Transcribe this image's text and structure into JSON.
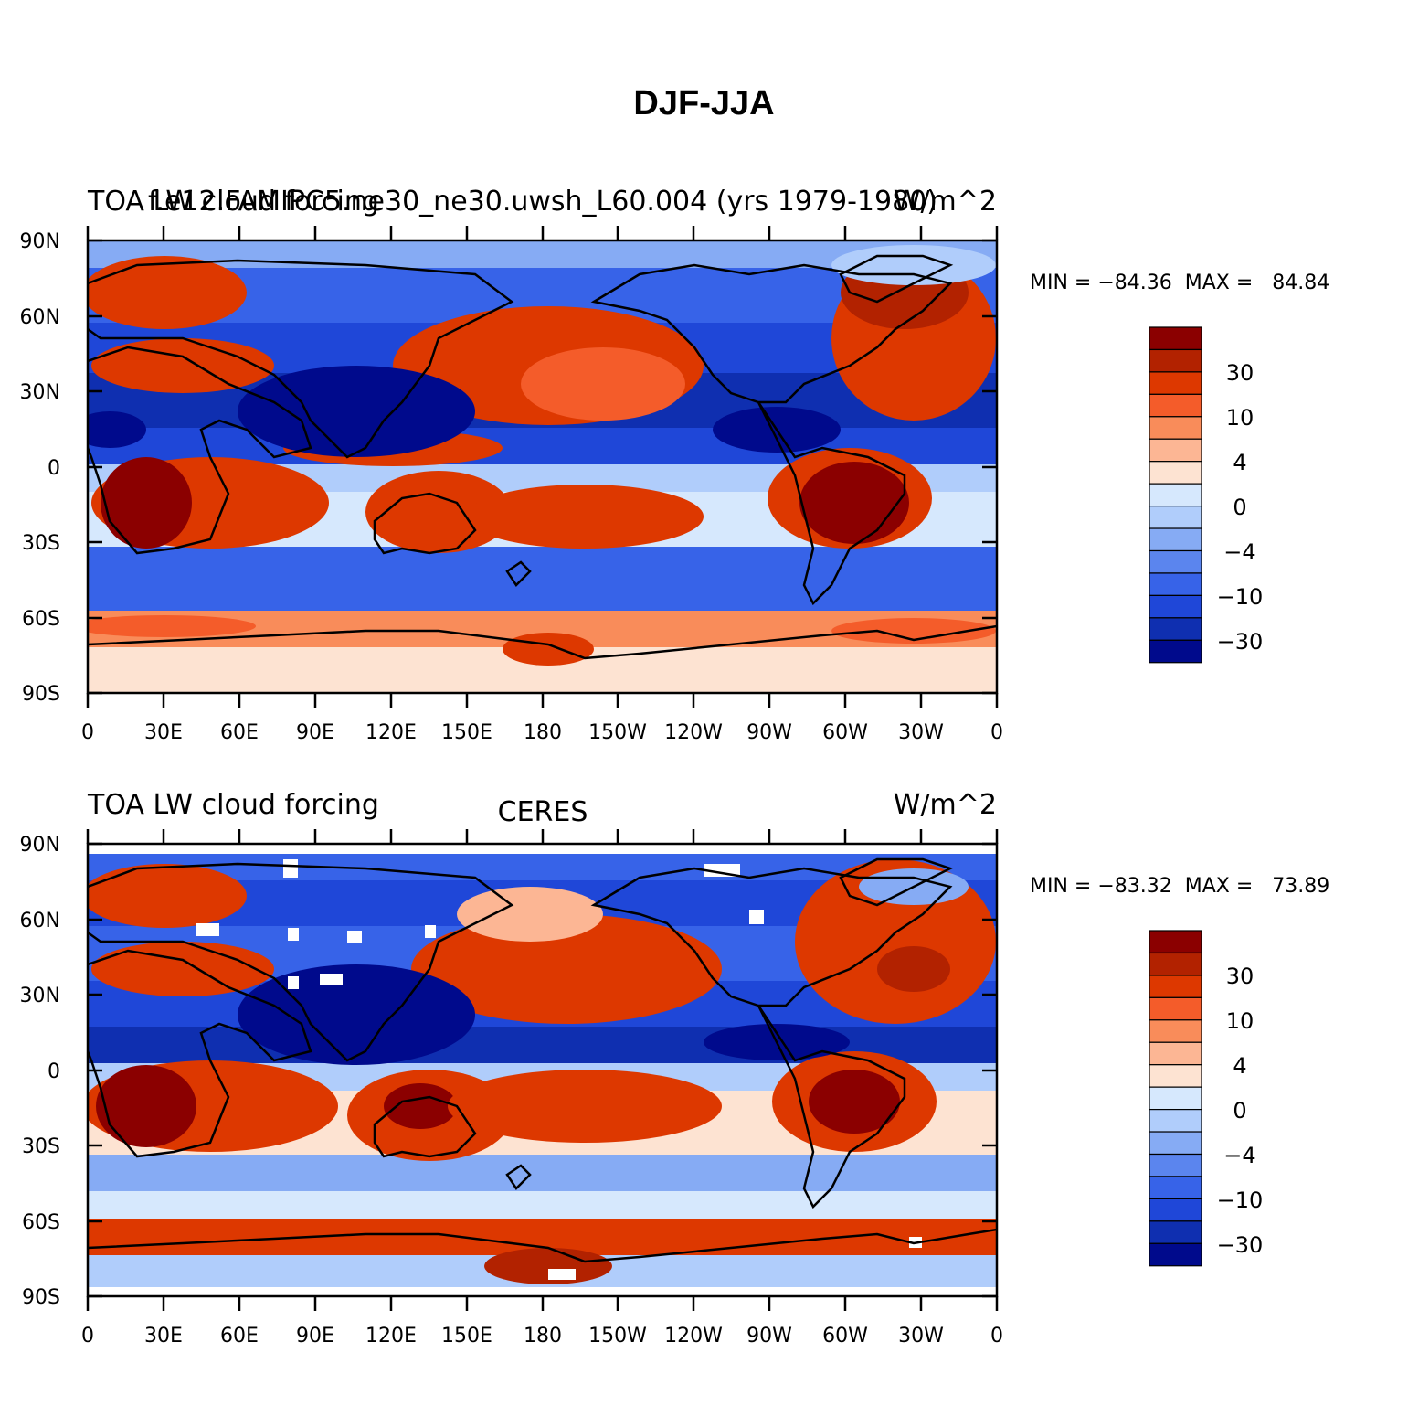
{
  "figure": {
    "title": "DJF-JJA"
  },
  "chart_data": [
    {
      "type": "heatmap",
      "panel": "top",
      "left_title": "TOA LW cloud forcing",
      "center_title": "f.e12.FAMIPC5.ne30_ne30.uwsh_L60.004 (yrs 1979-1980)",
      "right_title": "W/m^2",
      "min_max_text": "MIN = −84.36  MAX =   84.84",
      "min": -84.36,
      "max": 84.84,
      "ylabels": [
        "90N",
        "60N",
        "30N",
        "0",
        "30S",
        "60S",
        "90S"
      ],
      "xlabels": [
        "0",
        "30E",
        "60E",
        "90E",
        "120E",
        "150E",
        "180",
        "150W",
        "120W",
        "90W",
        "60W",
        "30W",
        "0"
      ],
      "colorbar_labels": [
        "30",
        "10",
        "4",
        "0",
        "−4",
        "−10",
        "−30"
      ],
      "colors": [
        "#8b0000",
        "#b22200",
        "#dd3800",
        "#f45c2a",
        "#f98c5a",
        "#fcb694",
        "#fde3d2",
        "#d6e8fd",
        "#b0cdfb",
        "#86abf4",
        "#5b85ee",
        "#3763e8",
        "#1f47d8",
        "#0f2fb0",
        "#000a8c"
      ]
    },
    {
      "type": "heatmap",
      "panel": "bottom",
      "left_title": "TOA LW cloud forcing",
      "center_title": "CERES",
      "right_title": "W/m^2",
      "min_max_text": "MIN = −83.32  MAX =   73.89",
      "min": -83.32,
      "max": 73.89,
      "ylabels": [
        "90N",
        "60N",
        "30N",
        "0",
        "30S",
        "60S",
        "90S"
      ],
      "xlabels": [
        "0",
        "30E",
        "60E",
        "90E",
        "120E",
        "150E",
        "180",
        "150W",
        "120W",
        "90W",
        "60W",
        "30W",
        "0"
      ],
      "colorbar_labels": [
        "30",
        "10",
        "4",
        "0",
        "−4",
        "−10",
        "−30"
      ],
      "colors": [
        "#8b0000",
        "#b22200",
        "#dd3800",
        "#f45c2a",
        "#f98c5a",
        "#fcb694",
        "#fde3d2",
        "#d6e8fd",
        "#b0cdfb",
        "#86abf4",
        "#5b85ee",
        "#3763e8",
        "#1f47d8",
        "#0f2fb0",
        "#000a8c"
      ]
    }
  ]
}
